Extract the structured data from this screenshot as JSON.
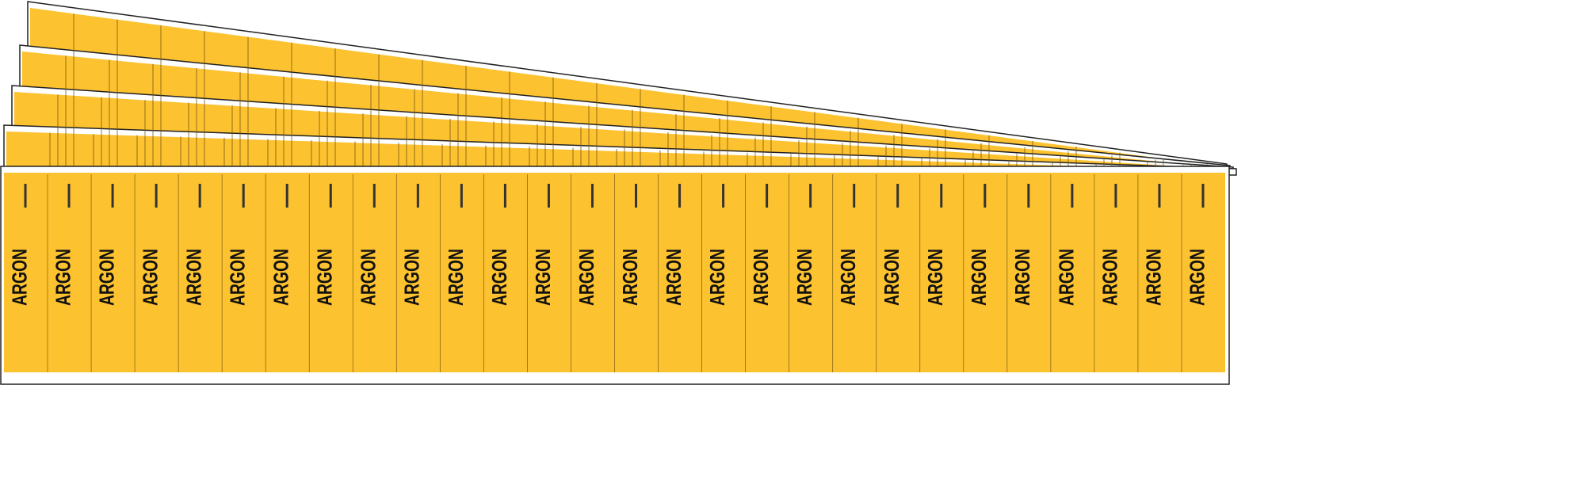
{
  "sheets": [
    {
      "labels": [
        "ARGON",
        "ARGON",
        "ARGON",
        "ARGON",
        "ARGON",
        "ARGON",
        "ARGON",
        "ARGON",
        "ARGON",
        "ARGON",
        "ARGON",
        "ARGON",
        "ARGON",
        "ARGON",
        "ARGON",
        "ARGON",
        "ARGON",
        "ARGON",
        "ARGON",
        "ARGON",
        "ARGON",
        "ARGON",
        "ARGON",
        "ARGON",
        "ARGON",
        "ARGON",
        "ARGON",
        "ARGON"
      ]
    }
  ]
}
